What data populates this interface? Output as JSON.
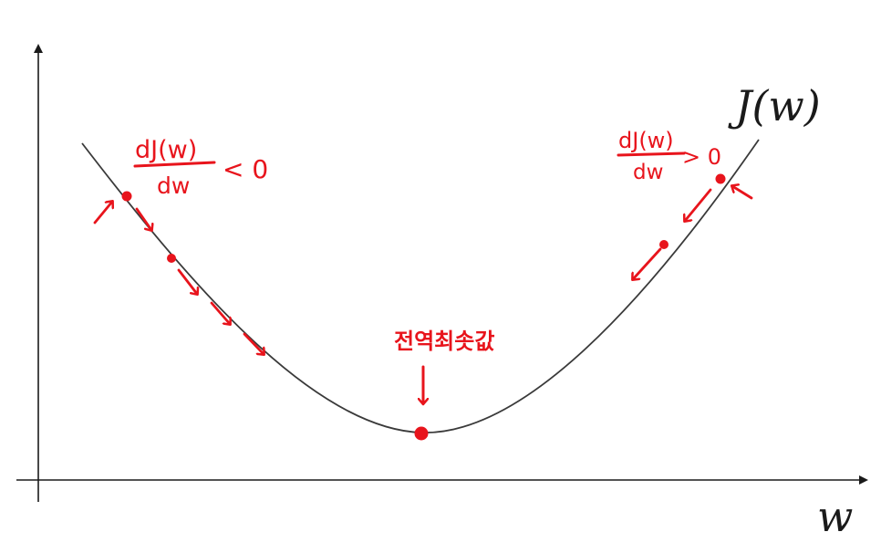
{
  "curve_label": "J(w)",
  "x_axis_label": "w",
  "annotations": {
    "left_derivative": {
      "numerator": "dJ(w)",
      "denominator": "dw",
      "relation": "< 0"
    },
    "right_derivative": {
      "numerator": "dJ(w)",
      "denominator": "dw",
      "relation": "> 0"
    },
    "minimum_label": "전역최솟값"
  },
  "colors": {
    "axis": "#1a1a1a",
    "curve": "#3a3a3a",
    "annotation": "#e8141c"
  }
}
